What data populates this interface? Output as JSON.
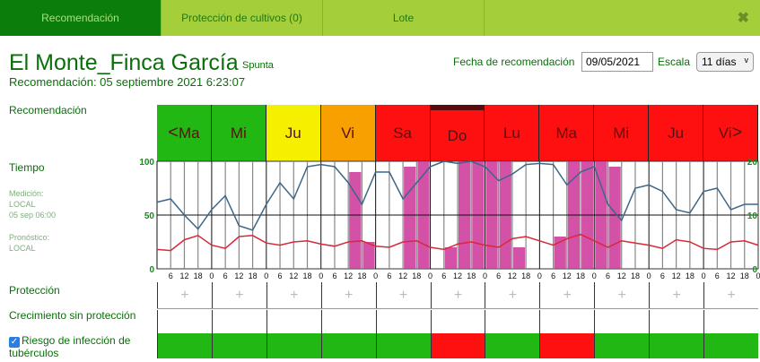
{
  "tabs": [
    {
      "label": "Recomendación",
      "active": true
    },
    {
      "label": "Protección de cultivos (0)"
    },
    {
      "label": "Lote"
    }
  ],
  "close_icon": "✖",
  "header": {
    "title": "El Monte_Finca García",
    "variety": "Spunta",
    "subtitle": "Recomendación: 05 septiembre 2021 6:23:07",
    "date_label": "Fecha de recomendación",
    "date_value": "09/05/2021",
    "scale_label": "Escala",
    "scale_value": "11 días"
  },
  "labels": {
    "recommendation": "Recomendación",
    "weather": "Tiempo",
    "measurement": "Medición:",
    "measurement_src": "LOCAL",
    "measurement_time": "05 sep 06:00",
    "forecast": "Pronóstico:",
    "forecast_src": "LOCAL",
    "protection": "Protección",
    "growth": "Crecimiento sin protección",
    "risk": "Riesgo de infección de tubérculos"
  },
  "days": [
    {
      "label": "Ma",
      "prefix": "<",
      "color": "#22b814",
      "risk": "#22b814"
    },
    {
      "label": "Mi",
      "color": "#22b814",
      "risk": "#22b814"
    },
    {
      "label": "Ju",
      "color": "#f5f000",
      "risk": "#22b814"
    },
    {
      "label": "Vi",
      "color": "#f7a000",
      "risk": "#22b814"
    },
    {
      "label": "Sa",
      "color": "#ff1010",
      "risk": "#22b814"
    },
    {
      "label": "Do",
      "color": "#ff1010",
      "current": true,
      "risk": "#ff1010"
    },
    {
      "label": "Lu",
      "color": "#ff1010",
      "risk": "#22b814"
    },
    {
      "label": "Ma",
      "color": "#ff1010",
      "risk": "#ff1010"
    },
    {
      "label": "Mi",
      "color": "#ff1010",
      "risk": "#22b814"
    },
    {
      "label": "Ju",
      "color": "#ff1010",
      "risk": "#22b814"
    },
    {
      "label": "Vi",
      "suffix": ">",
      "color": "#ff1010",
      "risk": "#22b814"
    }
  ],
  "protection_symbol": "+",
  "chart_data": {
    "type": "line",
    "left_axis": {
      "ticks": [
        "0",
        "50",
        "100"
      ],
      "range": [
        0,
        100
      ]
    },
    "right_axis": {
      "ticks": [
        "0",
        "10",
        "20"
      ],
      "range": [
        0,
        20
      ]
    },
    "hour_ticks": [
      "0",
      "6",
      "12",
      "18"
    ],
    "humidity": [
      62,
      65,
      50,
      37,
      55,
      68,
      40,
      36,
      60,
      80,
      65,
      95,
      97,
      95,
      80,
      60,
      90,
      90,
      65,
      80,
      95,
      100,
      98,
      100,
      95,
      82,
      88,
      97,
      98,
      97,
      78,
      90,
      95,
      60,
      45,
      75,
      78,
      72,
      55,
      52,
      72,
      75,
      55,
      60,
      60
    ],
    "temperature": [
      18,
      17,
      27,
      31,
      22,
      19,
      30,
      31,
      24,
      22,
      25,
      26,
      23,
      21,
      25,
      26,
      21,
      20,
      25,
      26,
      20,
      18,
      23,
      25,
      22,
      20,
      28,
      30,
      26,
      22,
      28,
      32,
      26,
      20,
      26,
      24,
      22,
      19,
      27,
      25,
      19,
      18,
      25,
      26,
      22
    ],
    "rain": [
      0,
      0,
      0,
      0,
      0,
      0,
      0,
      0,
      0,
      0,
      0,
      0,
      0,
      0,
      18,
      5,
      0,
      0,
      19,
      20,
      0,
      4,
      20,
      20,
      20,
      20,
      4,
      0,
      0,
      6,
      20,
      20,
      20,
      19,
      0,
      0,
      0,
      0,
      0,
      0,
      0,
      0,
      0,
      0
    ],
    "colors": {
      "humidity": "#3d6688",
      "temperature": "#d8283a",
      "rain": "#cc3399"
    }
  }
}
